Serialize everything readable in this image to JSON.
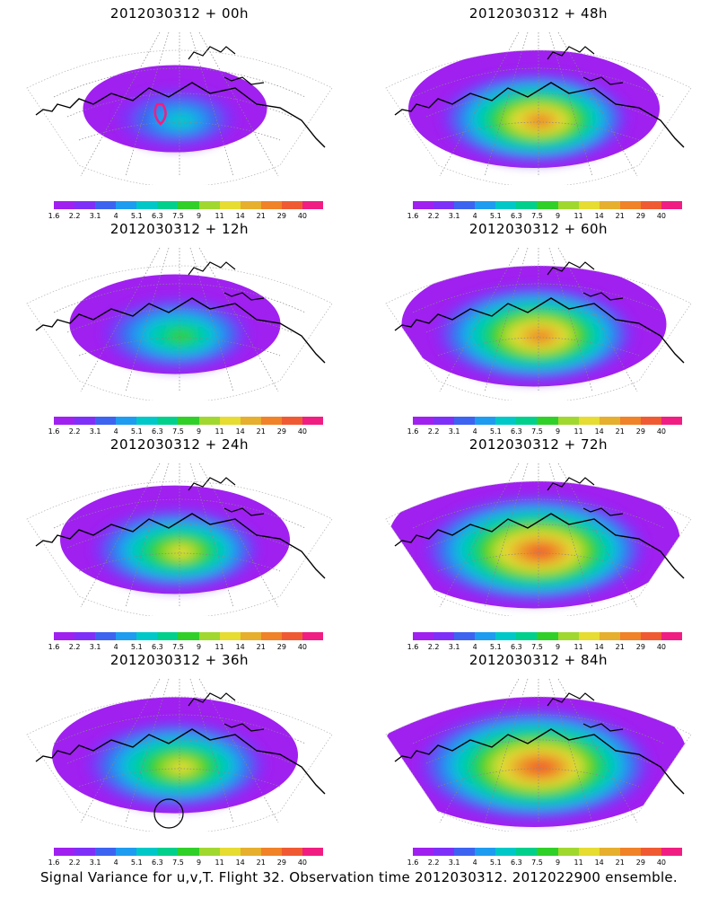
{
  "panels": [
    {
      "title": "2012030312 + 00h",
      "hot": 0,
      "extent": 0.55,
      "circle": false,
      "outlier": true
    },
    {
      "title": "2012030312 + 48h",
      "hot": 3,
      "extent": 0.8,
      "circle": false,
      "outlier": false
    },
    {
      "title": "2012030312 + 12h",
      "hot": 1,
      "extent": 0.65,
      "circle": false,
      "outlier": false
    },
    {
      "title": "2012030312 + 60h",
      "hot": 3,
      "extent": 0.85,
      "circle": false,
      "outlier": false
    },
    {
      "title": "2012030312 + 24h",
      "hot": 2,
      "extent": 0.72,
      "circle": false,
      "outlier": false
    },
    {
      "title": "2012030312 + 72h",
      "hot": 4,
      "extent": 0.95,
      "circle": false,
      "outlier": false
    },
    {
      "title": "2012030312 + 36h",
      "hot": 2,
      "extent": 0.78,
      "circle": true,
      "outlier": false
    },
    {
      "title": "2012030312 + 84h",
      "hot": 4,
      "extent": 1.0,
      "circle": false,
      "outlier": false
    }
  ],
  "colorbar": {
    "colors": [
      "#a020f0",
      "#7f30f8",
      "#3c64f0",
      "#1e9cf0",
      "#00c8c8",
      "#00d08c",
      "#30d028",
      "#a0d830",
      "#e6dc32",
      "#e6af2d",
      "#f08228",
      "#f05a32",
      "#f01e82"
    ],
    "labels": [
      "1.6",
      "2.2",
      "3.1",
      "4",
      "5.1",
      "6.3",
      "7.5",
      "9",
      "11",
      "14",
      "21",
      "29",
      "40"
    ]
  },
  "footer": "Signal Variance for u,v,T. Flight 32. Observation time 2012030312. 2012022900 ensemble."
}
